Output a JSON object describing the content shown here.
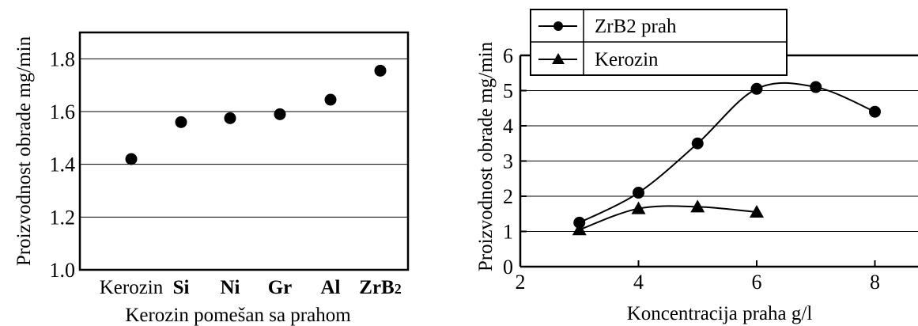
{
  "chart_data": [
    {
      "type": "scatter",
      "title": "",
      "xlabel": "Kerozin pomešan sa prahom",
      "ylabel": "Proizvodnost obrade mg/min",
      "categories": [
        "Kerozin",
        "Si",
        "Ni",
        "Gr",
        "Al",
        "ZrB2"
      ],
      "values": [
        1.42,
        1.56,
        1.575,
        1.59,
        1.645,
        1.755
      ],
      "ylim": [
        1.0,
        1.9
      ],
      "yticks": [
        "1.0",
        "1.2",
        "1.4",
        "1.6",
        "1.8"
      ],
      "grid": true
    },
    {
      "type": "line",
      "title": "",
      "xlabel": "Koncentracija praha g/l",
      "ylabel": "Proizvodnost obrade mg/min",
      "xlim": [
        2,
        9
      ],
      "ylim": [
        0,
        6
      ],
      "xticks": [
        "2",
        "4",
        "6",
        "8"
      ],
      "yticks": [
        "0",
        "1",
        "2",
        "3",
        "4",
        "5",
        "6"
      ],
      "grid": true,
      "legend": "top-left",
      "series": [
        {
          "name": "ZrB2 prah",
          "marker": "circle",
          "x": [
            3,
            4,
            5,
            6,
            7,
            8
          ],
          "y": [
            1.25,
            2.1,
            3.5,
            5.05,
            5.1,
            4.4
          ]
        },
        {
          "name": "Kerozin",
          "marker": "triangle",
          "x": [
            3,
            4,
            5,
            6
          ],
          "y": [
            1.05,
            1.65,
            1.7,
            1.55
          ]
        }
      ]
    }
  ]
}
